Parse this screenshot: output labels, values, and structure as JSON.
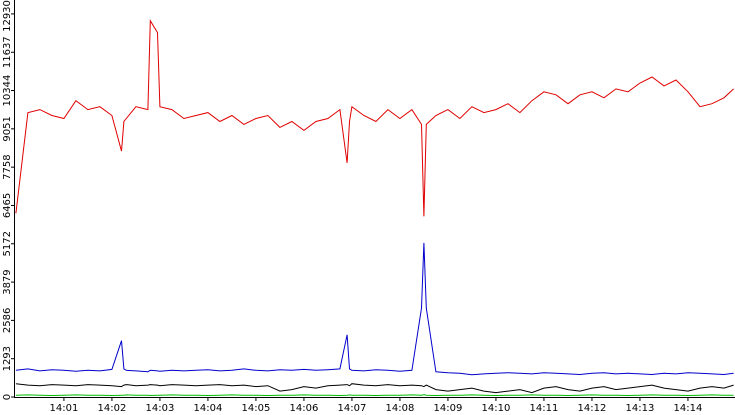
{
  "chart_data": {
    "type": "line",
    "x": [
      840,
      840.25,
      840.5,
      840.75,
      841,
      841.25,
      841.5,
      841.75,
      842,
      842.2,
      842.25,
      842.3,
      842.5,
      842.75,
      842.8,
      842.95,
      843,
      843.25,
      843.5,
      843.75,
      844,
      844.25,
      844.5,
      844.75,
      845,
      845.25,
      845.5,
      845.75,
      846,
      846.25,
      846.5,
      846.75,
      846.9,
      846.95,
      847,
      847.25,
      847.5,
      847.75,
      848,
      848.25,
      848.45,
      848.5,
      848.55,
      848.75,
      849,
      849.25,
      849.5,
      849.75,
      850,
      850.25,
      850.5,
      850.75,
      851,
      851.25,
      851.5,
      851.75,
      852,
      852.25,
      852.5,
      852.75,
      853,
      853.25,
      853.5,
      853.75,
      854,
      854.25,
      854.5,
      854.75,
      854.95
    ],
    "series": [
      {
        "color": "#e00000",
        "values": [
          6200,
          9600,
          9700,
          9500,
          9400,
          10000,
          9700,
          9800,
          9500,
          8300,
          9300,
          9400,
          9800,
          9700,
          12700,
          12300,
          9800,
          9700,
          9400,
          9500,
          9600,
          9300,
          9500,
          9200,
          9400,
          9500,
          9100,
          9300,
          9000,
          9300,
          9400,
          9700,
          7900,
          9300,
          9800,
          9500,
          9300,
          9700,
          9400,
          9700,
          9200,
          6100,
          9200,
          9500,
          9700,
          9400,
          9800,
          9600,
          9700,
          9900,
          9600,
          10000,
          10300,
          10200,
          9900,
          10200,
          10300,
          10100,
          10400,
          10300,
          10600,
          10800,
          10500,
          10700,
          10300,
          9800,
          9900,
          10100,
          10400
        ]
      },
      {
        "color": "#0000cc",
        "values": [
          900,
          950,
          880,
          920,
          900,
          870,
          900,
          880,
          930,
          1900,
          950,
          900,
          880,
          850,
          900,
          880,
          870,
          900,
          880,
          900,
          920,
          880,
          900,
          950,
          900,
          880,
          920,
          900,
          930,
          900,
          920,
          950,
          2100,
          950,
          900,
          880,
          920,
          900,
          870,
          900,
          3000,
          5200,
          3000,
          850,
          820,
          800,
          750,
          780,
          800,
          820,
          800,
          780,
          820,
          800,
          780,
          760,
          800,
          820,
          780,
          800,
          780,
          760,
          800,
          780,
          820,
          800,
          780,
          760,
          800
        ]
      },
      {
        "color": "#000000",
        "values": [
          450,
          400,
          380,
          420,
          400,
          380,
          420,
          400,
          380,
          350,
          400,
          420,
          380,
          400,
          420,
          400,
          380,
          420,
          400,
          380,
          400,
          420,
          380,
          400,
          350,
          380,
          200,
          250,
          350,
          300,
          380,
          400,
          420,
          380,
          450,
          400,
          380,
          420,
          380,
          400,
          380,
          350,
          400,
          250,
          200,
          250,
          300,
          200,
          150,
          200,
          250,
          150,
          300,
          350,
          250,
          200,
          300,
          350,
          250,
          300,
          350,
          400,
          300,
          250,
          200,
          300,
          350,
          300,
          400
        ]
      },
      {
        "color": "#00bb00",
        "values": [
          60,
          70,
          60,
          50,
          60,
          70,
          60,
          60,
          50,
          60,
          60,
          70,
          60,
          60,
          50,
          60,
          60,
          70,
          60,
          60,
          50,
          60,
          70,
          60,
          60,
          50,
          60,
          60,
          70,
          60,
          60,
          50,
          60,
          70,
          60,
          60,
          50,
          60,
          60,
          70,
          60,
          80,
          60,
          50,
          60,
          60,
          70,
          60,
          50,
          60,
          60,
          70,
          60,
          60,
          50,
          60,
          70,
          60,
          60,
          50,
          60,
          70,
          60,
          60,
          50,
          60,
          70,
          60,
          60
        ]
      }
    ],
    "xlim": [
      839.96,
      854.98
    ],
    "xticks": [
      {
        "value": 841,
        "label": "14:01"
      },
      {
        "value": 842,
        "label": "14:02"
      },
      {
        "value": 843,
        "label": "14:03"
      },
      {
        "value": 844,
        "label": "14:04"
      },
      {
        "value": 845,
        "label": "14:05"
      },
      {
        "value": 846,
        "label": "14:06"
      },
      {
        "value": 847,
        "label": "14:07"
      },
      {
        "value": 848,
        "label": "14:08"
      },
      {
        "value": 849,
        "label": "14:09"
      },
      {
        "value": 850,
        "label": "14:10"
      },
      {
        "value": 851,
        "label": "14:11"
      },
      {
        "value": 852,
        "label": "14:12"
      },
      {
        "value": 853,
        "label": "14:13"
      },
      {
        "value": 854,
        "label": "14:14"
      }
    ],
    "ylim": [
      0,
      13400
    ],
    "yticks": [
      0,
      1293,
      2586,
      3879,
      5172,
      6465,
      7758,
      9051,
      10344,
      11637,
      12930
    ]
  }
}
